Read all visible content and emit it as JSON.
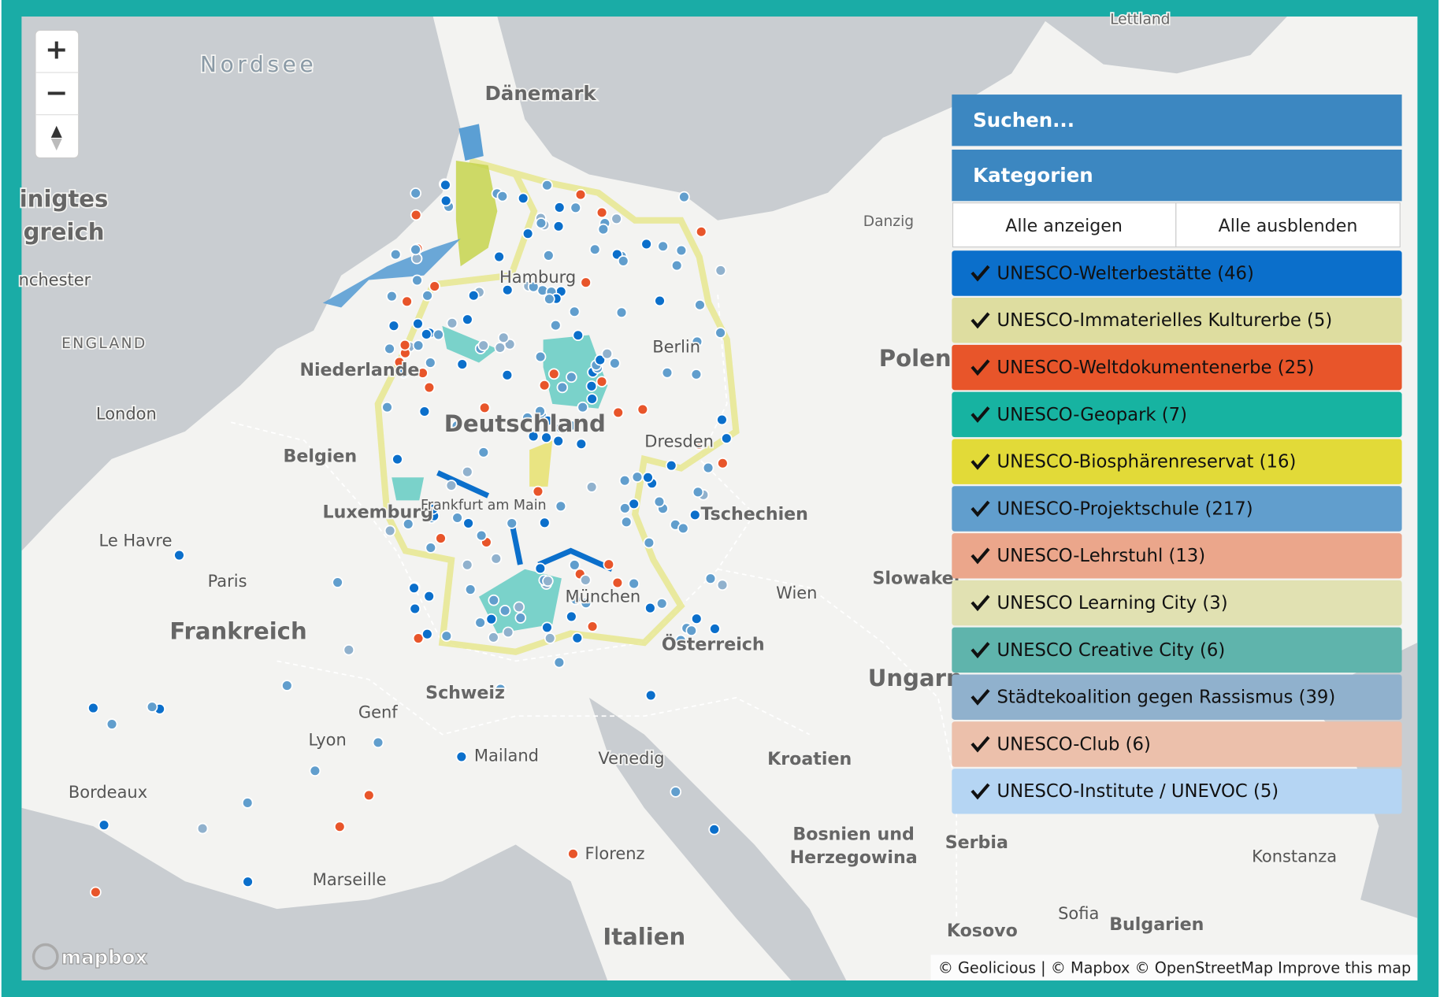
{
  "map_labels": [
    "Lettland",
    "Nordsee",
    "Dänemark",
    "inigtes",
    "greich",
    "nchester",
    "ENGLAND",
    "Niederlande",
    "London",
    "Belgien",
    "Deutschland",
    "Hamburg",
    "Berlin",
    "Dresden",
    "Luxemburg",
    "Tschechien",
    "Polen",
    "Danzig",
    "Le Havre",
    "Paris",
    "Frankreich",
    "Wien",
    "Slowakei",
    "Österreich",
    "Ungarn",
    "München",
    "Schweiz",
    "Genf",
    "Lyon",
    "Mailand",
    "Venedig",
    "Kroatien",
    "Bordeaux",
    "Bosnien und",
    "Herzegowina",
    "Serbia",
    "Florenz",
    "Marseille",
    "Italien",
    "Sofia",
    "Bulgarien",
    "Kosovo",
    "Konstanza",
    "Frankfurt am Main"
  ],
  "controls": {
    "zoom_in": "+",
    "zoom_out": "−"
  },
  "panel": {
    "search": "Suchen...",
    "categories_title": "Kategorien",
    "show_all": "Alle anzeigen",
    "hide_all": "Alle ausblenden",
    "categories": [
      {
        "label": "UNESCO-Welterbestätte (46)",
        "color": "#0b6fcb"
      },
      {
        "label": "UNESCO-Immaterielles Kulturerbe (5)",
        "color": "#dedda0"
      },
      {
        "label": "UNESCO-Weltdokumentenerbe (25)",
        "color": "#e8552a"
      },
      {
        "label": "UNESCO-Geopark (7)",
        "color": "#17b3a1"
      },
      {
        "label": "UNESCO-Biosphärenreservat (16)",
        "color": "#e2da38"
      },
      {
        "label": "UNESCO-Projektschule (217)",
        "color": "#619ecd"
      },
      {
        "label": "UNESCO-Lehrstuhl (13)",
        "color": "#eba68b"
      },
      {
        "label": "UNESCO Learning City (3)",
        "color": "#e1e1b2"
      },
      {
        "label": "UNESCO Creative City (6)",
        "color": "#5fb4ac"
      },
      {
        "label": "Städtekoalition gegen Rassismus (39)",
        "color": "#90b1cd"
      },
      {
        "label": "UNESCO-Club (6)",
        "color": "#ecc0ab"
      },
      {
        "label": "UNESCO-Institute / UNEVOC (5)",
        "color": "#b5d5f3"
      }
    ]
  },
  "attribution": "© Geolicious | © Mapbox © OpenStreetMap Improve this map",
  "logo": "mapbox"
}
